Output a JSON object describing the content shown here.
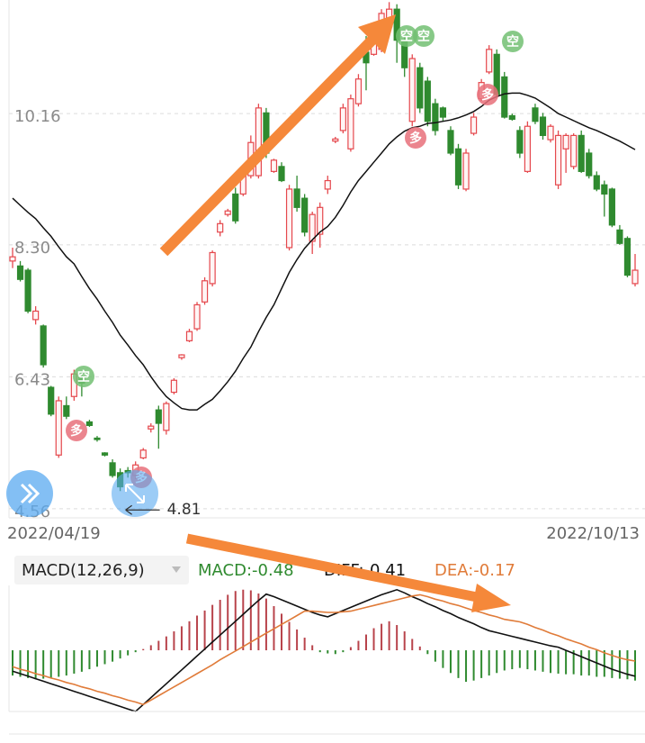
{
  "chart_data": [
    {
      "type": "candlestick",
      "categories": [
        "2022/04/19",
        null,
        null,
        null,
        null,
        null,
        null,
        null,
        null,
        null,
        null,
        null,
        null,
        null,
        null,
        null,
        null,
        null,
        null,
        null,
        null,
        null,
        null,
        null,
        null,
        null,
        null,
        null,
        null,
        null,
        null,
        null,
        null,
        null,
        null,
        null,
        null,
        null,
        null,
        null,
        null,
        null,
        null,
        null,
        null,
        null,
        null,
        null,
        null,
        null,
        null,
        null,
        null,
        null,
        null,
        null,
        null,
        null,
        null,
        null,
        null,
        null,
        null,
        null,
        null,
        null,
        null,
        null,
        null,
        null,
        null,
        null,
        null,
        null,
        null,
        null,
        null,
        null,
        null,
        null,
        null,
        "2022/10/13"
      ],
      "open": [
        8.07,
        8.0,
        7.94,
        7.24,
        7.15,
        6.28,
        5.32,
        6.02,
        6.15,
        6.43,
        5.79,
        5.56,
        5.35,
        5.21,
        5.07,
        5.1,
        5.03,
        5.28,
        5.69,
        5.96,
        5.67,
        6.21,
        6.7,
        6.94,
        7.11,
        7.49,
        7.75,
        8.48,
        8.73,
        9.02,
        9.02,
        9.28,
        9.28,
        10.17,
        9.34,
        9.41,
        8.26,
        9.09,
        8.96,
        8.35,
        8.45,
        9.09,
        9.77,
        9.92,
        9.66,
        10.3,
        11.03,
        11.0,
        11.07,
        11.39,
        11.64,
        11.2,
        10.05,
        10.81,
        10.62,
        10.3,
        10.24,
        9.92,
        9.66,
        9.09,
        9.88,
        10.37,
        10.75,
        11.0,
        10.68,
        10.13,
        9.92,
        9.34,
        10.24,
        10.11,
        9.79,
        9.15,
        9.66,
        9.41,
        9.85,
        9.6,
        9.28,
        9.15,
        9.09,
        8.51,
        8.39,
        7.75
      ],
      "high": [
        8.26,
        8.07,
        7.97,
        7.43,
        7.17,
        6.3,
        6.15,
        6.15,
        6.53,
        6.51,
        5.82,
        5.59,
        5.36,
        5.26,
        5.13,
        5.15,
        5.23,
        5.42,
        5.77,
        6.02,
        6.08,
        6.41,
        6.75,
        7.11,
        7.49,
        7.84,
        8.22,
        8.65,
        8.81,
        9.11,
        9.34,
        9.85,
        10.3,
        10.24,
        9.52,
        9.47,
        9.15,
        9.28,
        9.02,
        8.77,
        8.9,
        9.28,
        9.83,
        10.3,
        10.43,
        10.72,
        11.26,
        11.32,
        11.64,
        11.74,
        11.71,
        11.26,
        11.0,
        10.88,
        10.68,
        10.37,
        10.26,
        9.98,
        9.73,
        9.66,
        10.17,
        10.65,
        11.13,
        11.07,
        10.75,
        10.16,
        9.98,
        10.05,
        10.3,
        10.17,
        10.01,
        9.92,
        9.88,
        9.88,
        9.92,
        9.66,
        9.34,
        9.21,
        9.11,
        8.58,
        8.42,
        8.17
      ],
      "low": [
        7.97,
        7.78,
        7.33,
        7.17,
        6.56,
        5.87,
        5.28,
        5.83,
        6.09,
        6.15,
        5.72,
        5.51,
        5.3,
        5.0,
        4.81,
        5.0,
        4.98,
        5.26,
        5.64,
        5.41,
        5.61,
        6.18,
        6.67,
        6.92,
        7.08,
        7.45,
        7.71,
        8.42,
        8.7,
        8.6,
        8.99,
        9.24,
        9.24,
        9.53,
        9.32,
        9.19,
        8.22,
        8.77,
        8.42,
        8.17,
        8.26,
        9.02,
        9.74,
        9.88,
        9.62,
        10.26,
        10.49,
        10.98,
        11.03,
        11.36,
        10.88,
        10.68,
        9.98,
        10.17,
        9.98,
        9.85,
        10.05,
        9.57,
        9.09,
        9.06,
        9.85,
        10.34,
        10.72,
        10.39,
        10.09,
        10.06,
        9.53,
        9.32,
        10.01,
        9.79,
        9.75,
        9.09,
        9.32,
        9.37,
        9.32,
        9.24,
        9.06,
        8.7,
        8.55,
        8.3,
        7.84,
        7.71
      ],
      "close": [
        8.13,
        7.81,
        7.36,
        7.36,
        6.6,
        5.9,
        6.09,
        5.87,
        6.47,
        6.34,
        5.74,
        5.54,
        5.32,
        5.03,
        4.87,
        5.07,
        5.18,
        5.39,
        5.73,
        5.77,
        6.05,
        6.38,
        6.74,
        7.07,
        7.45,
        7.79,
        8.19,
        8.6,
        8.78,
        8.64,
        9.28,
        9.75,
        10.24,
        9.6,
        9.5,
        9.21,
        9.09,
        8.83,
        8.48,
        8.73,
        8.83,
        9.21,
        9.8,
        10.24,
        10.37,
        10.65,
        10.88,
        11.26,
        11.58,
        11.64,
        11.2,
        10.81,
        10.94,
        10.24,
        10.05,
        9.92,
        10.11,
        9.6,
        9.15,
        9.6,
        10.11,
        10.6,
        11.07,
        10.43,
        10.11,
        10.08,
        9.6,
        9.98,
        10.05,
        9.85,
        9.98,
        9.85,
        9.85,
        9.85,
        9.34,
        9.28,
        9.09,
        9.02,
        8.58,
        8.32,
        7.87,
        7.94
      ],
      "ma": [
        8.96,
        8.86,
        8.76,
        8.67,
        8.54,
        8.42,
        8.27,
        8.13,
        8.03,
        7.85,
        7.68,
        7.53,
        7.36,
        7.2,
        7.02,
        6.88,
        6.73,
        6.6,
        6.43,
        6.28,
        6.15,
        6.06,
        5.98,
        5.96,
        5.96,
        6.04,
        6.11,
        6.23,
        6.36,
        6.51,
        6.69,
        6.85,
        7.07,
        7.27,
        7.45,
        7.68,
        7.91,
        8.09,
        8.25,
        8.37,
        8.48,
        8.56,
        8.69,
        8.86,
        9.05,
        9.21,
        9.34,
        9.47,
        9.6,
        9.73,
        9.83,
        9.91,
        9.96,
        9.98,
        10.02,
        10.03,
        10.05,
        10.07,
        10.1,
        10.14,
        10.19,
        10.26,
        10.35,
        10.4,
        10.44,
        10.45,
        10.45,
        10.42,
        10.38,
        10.31,
        10.24,
        10.16,
        10.11,
        10.06,
        10.01,
        9.96,
        9.92,
        9.87,
        9.82,
        9.77,
        9.71,
        9.65
      ],
      "up_color": "#e5484d",
      "down_color": "#2f8a2f",
      "ma_color": "#111111",
      "ylim": [
        4.43,
        11.77
      ],
      "yticks": [
        10.16,
        {
          "value": 8.3,
          "label": "8.30"
        },
        6.43,
        4.56
      ],
      "grid": true,
      "low_label": 4.81,
      "signals": [
        "空",
        "多",
        "多",
        "空",
        "空",
        "多",
        "多",
        "空"
      ]
    },
    {
      "type": "macd",
      "title": "MACD(12,26,9)",
      "ylim": [
        -0.97,
        1.1
      ],
      "series": [
        {
          "name": "MACD:-0.48",
          "color": "#2f8a2f",
          "positive_color": "#b8434b",
          "negative_color": "#2f8a2f",
          "values": [
            -0.4,
            -0.42,
            -0.44,
            -0.46,
            -0.45,
            -0.44,
            -0.42,
            -0.4,
            -0.37,
            -0.34,
            -0.3,
            -0.26,
            -0.22,
            -0.18,
            -0.13,
            -0.08,
            -0.03,
            0.02,
            0.08,
            0.15,
            0.22,
            0.3,
            0.38,
            0.46,
            0.55,
            0.63,
            0.72,
            0.8,
            0.88,
            0.94,
            0.96,
            0.95,
            0.9,
            0.82,
            0.7,
            0.58,
            0.45,
            0.33,
            0.2,
            0.08,
            -0.03,
            -0.05,
            -0.06,
            -0.03,
            0.05,
            0.15,
            0.25,
            0.35,
            0.42,
            0.46,
            0.4,
            0.3,
            0.18,
            0.06,
            -0.06,
            -0.18,
            -0.28,
            -0.36,
            -0.44,
            -0.5,
            -0.48,
            -0.44,
            -0.4,
            -0.36,
            -0.32,
            -0.3,
            -0.28,
            -0.3,
            -0.32,
            -0.34,
            -0.36,
            -0.37,
            -0.38,
            -0.38,
            -0.4,
            -0.4,
            -0.42,
            -0.42,
            -0.44,
            -0.45,
            -0.46,
            -0.48
          ]
        },
        {
          "name": "DIFF:-0.41",
          "color": "#111111",
          "values": [
            -0.33,
            -0.37,
            -0.41,
            -0.45,
            -0.49,
            -0.53,
            -0.57,
            -0.61,
            -0.65,
            -0.69,
            -0.73,
            -0.77,
            -0.81,
            -0.85,
            -0.89,
            -0.93,
            -0.97,
            -0.86,
            -0.75,
            -0.64,
            -0.53,
            -0.42,
            -0.31,
            -0.2,
            -0.09,
            0.02,
            0.13,
            0.24,
            0.35,
            0.46,
            0.57,
            0.68,
            0.79,
            0.89,
            0.85,
            0.8,
            0.75,
            0.7,
            0.65,
            0.6,
            0.56,
            0.53,
            0.58,
            0.63,
            0.68,
            0.73,
            0.78,
            0.83,
            0.88,
            0.92,
            0.96,
            0.91,
            0.85,
            0.8,
            0.74,
            0.69,
            0.63,
            0.58,
            0.52,
            0.47,
            0.42,
            0.36,
            0.31,
            0.28,
            0.25,
            0.22,
            0.19,
            0.16,
            0.13,
            0.1,
            0.07,
            0.05,
            0.0,
            -0.05,
            -0.1,
            -0.15,
            -0.2,
            -0.25,
            -0.3,
            -0.34,
            -0.38,
            -0.41
          ]
        },
        {
          "name": "DEA:-0.17",
          "color": "#e07b39",
          "values": [
            -0.26,
            -0.3,
            -0.33,
            -0.37,
            -0.4,
            -0.44,
            -0.47,
            -0.51,
            -0.54,
            -0.58,
            -0.61,
            -0.65,
            -0.68,
            -0.72,
            -0.75,
            -0.79,
            -0.82,
            -0.86,
            -0.79,
            -0.72,
            -0.65,
            -0.58,
            -0.51,
            -0.44,
            -0.37,
            -0.3,
            -0.23,
            -0.15,
            -0.08,
            -0.01,
            0.06,
            0.13,
            0.2,
            0.27,
            0.34,
            0.41,
            0.48,
            0.55,
            0.62,
            0.62,
            0.61,
            0.6,
            0.6,
            0.61,
            0.62,
            0.65,
            0.68,
            0.71,
            0.74,
            0.77,
            0.8,
            0.83,
            0.86,
            0.88,
            0.85,
            0.81,
            0.78,
            0.74,
            0.71,
            0.67,
            0.63,
            0.6,
            0.56,
            0.53,
            0.49,
            0.47,
            0.45,
            0.41,
            0.36,
            0.32,
            0.27,
            0.23,
            0.18,
            0.14,
            0.1,
            0.05,
            0.01,
            -0.04,
            -0.08,
            -0.12,
            -0.15,
            -0.17
          ]
        }
      ]
    }
  ]
}
